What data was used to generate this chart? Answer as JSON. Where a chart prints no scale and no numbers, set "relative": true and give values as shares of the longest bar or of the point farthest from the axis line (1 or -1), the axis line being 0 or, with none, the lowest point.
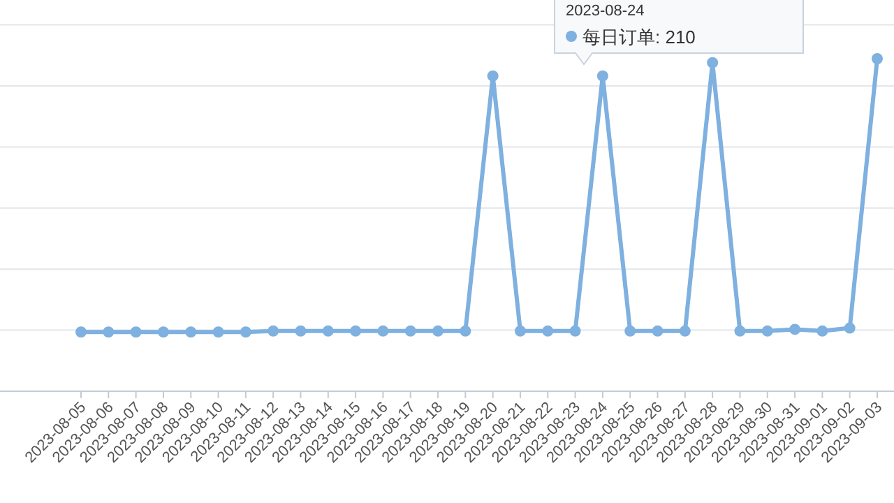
{
  "chart_data": {
    "type": "line",
    "relative": true,
    "grid": "y",
    "marker": "circle",
    "line_style": "solid",
    "categories": [
      "2023-08-05",
      "2023-08-06",
      "2023-08-07",
      "2023-08-08",
      "2023-08-09",
      "2023-08-10",
      "2023-08-11",
      "2023-08-12",
      "2023-08-13",
      "2023-08-14",
      "2023-08-15",
      "2023-08-16",
      "2023-08-17",
      "2023-08-18",
      "2023-08-19",
      "2023-08-20",
      "2023-08-21",
      "2023-08-22",
      "2023-08-23",
      "2023-08-24",
      "2023-08-25",
      "2023-08-26",
      "2023-08-27",
      "2023-08-28",
      "2023-08-29",
      "2023-08-30",
      "2023-08-31",
      "2023-09-01",
      "2023-09-02",
      "2023-09-03"
    ],
    "series": [
      {
        "color": "#7eb0e0",
        "values": [
          0.178,
          0.178,
          0.178,
          0.178,
          0.178,
          0.178,
          0.178,
          0.181,
          0.181,
          0.181,
          0.181,
          0.181,
          0.181,
          0.181,
          0.181,
          0.948,
          0.181,
          0.181,
          0.181,
          0.948,
          0.181,
          0.181,
          0.181,
          0.988,
          0.181,
          0.181,
          0.186,
          0.181,
          0.19,
          1
        ]
      }
    ],
    "annotations": [
      "2023-08-24",
      "每日订单: 210"
    ]
  }
}
